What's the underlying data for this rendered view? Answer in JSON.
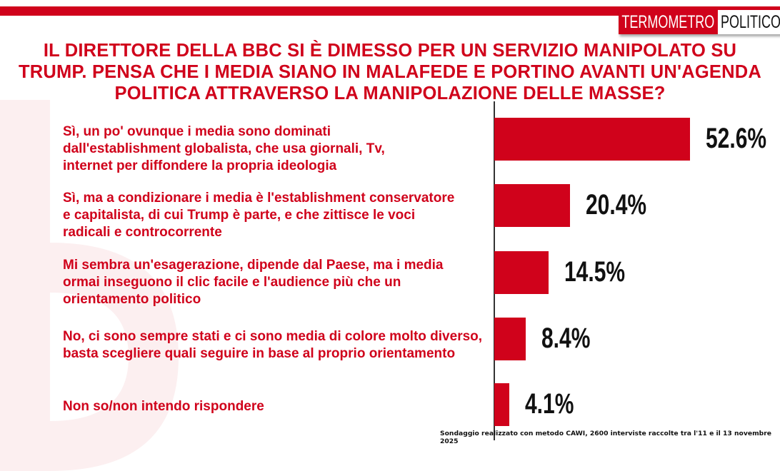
{
  "brand": {
    "part1": "TERMOMETRO",
    "part2": "POLITICO",
    "accent": "#d0021b"
  },
  "chart_data": {
    "type": "bar",
    "orientation": "horizontal",
    "title": "IL DIRETTORE DELLA BBC SI È DIMESSO PER UN SERVIZIO MANIPOLATO SU TRUMP. PENSA CHE I MEDIA SIANO IN MALAFEDE E PORTINO AVANTI UN'AGENDA POLITICA ATTRAVERSO LA MANIPOLAZIONE DELLE MASSE?",
    "categories": [
      "Sì, un po' ovunque i media sono dominati dall'establishment globalista, che usa giornali, Tv, internet per diffondere la propria ideologia",
      "Sì, ma a condizionare i media è l'establishment conservatore e capitalista, di cui Trump è parte, e che zittisce le voci radicali e controcorrente",
      "Mi sembra un'esagerazione, dipende dal Paese, ma i media ormai inseguono il clic facile e l'audience più che un orientamento politico",
      "No, ci sono sempre stati  e ci sono media di colore molto diverso, basta scegliere quali seguire in base al proprio orientamento",
      "Non so/non intendo rispondere"
    ],
    "values": [
      52.6,
      20.4,
      14.5,
      8.4,
      4.1
    ],
    "data_labels": [
      "52.6%",
      "20.4%",
      "14.5%",
      "8.4%",
      "4.1%"
    ],
    "bar_color": "#d0021b",
    "grid": false
  },
  "footnote": "Sondaggio realizzato con metodo CAWI, 2600 interviste raccolte tra l'11 e il 13 novembre  2025"
}
